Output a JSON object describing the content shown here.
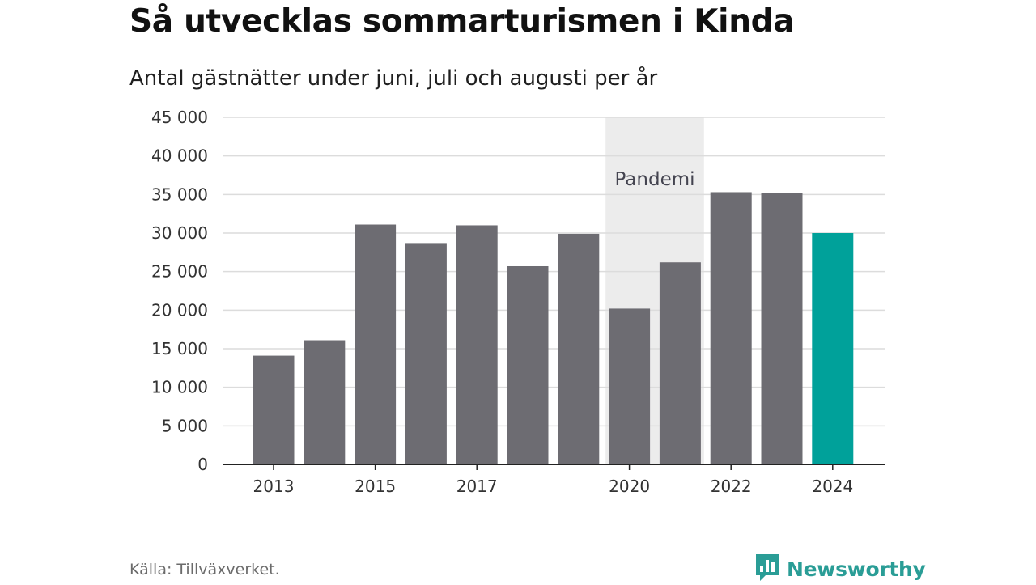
{
  "title": "Så utvecklas sommarturismen i Kinda",
  "subtitle": "Antal gästnätter under juni, juli och augusti per år",
  "source": "Källa: Tillväxverket.",
  "brand": {
    "name": "Newsworthy",
    "icon": "newsworthy-logo-icon",
    "color": "#2a9d96"
  },
  "colors": {
    "bar": "#6d6c72",
    "highlight": "#00a19a",
    "shade": "#ececec",
    "grid": "#dcdcdc",
    "axis": "#222222"
  },
  "chart_data": {
    "type": "bar",
    "categories": [
      "2013",
      "2014",
      "2015",
      "2016",
      "2017",
      "2018",
      "2019",
      "2020",
      "2021",
      "2022",
      "2023",
      "2024"
    ],
    "values": [
      14100,
      16100,
      31100,
      28700,
      31000,
      25700,
      29900,
      20200,
      26200,
      35300,
      35200,
      30000
    ],
    "highlight_index": 11,
    "x_tick_labels": [
      "2013",
      "",
      "2015",
      "",
      "2017",
      "",
      "",
      "2020",
      "",
      "2022",
      "",
      "2024"
    ],
    "ylim": [
      0,
      45000
    ],
    "yticks": [
      0,
      5000,
      10000,
      15000,
      20000,
      25000,
      30000,
      35000,
      40000,
      45000
    ],
    "ytick_labels": [
      "0",
      "5 000",
      "10 000",
      "15 000",
      "20 000",
      "25 000",
      "30 000",
      "35 000",
      "40 000",
      "45 000"
    ],
    "grid": true,
    "legend": "none",
    "annotations": [
      {
        "label": "Pandemi",
        "from_category": "2020",
        "to_category": "2021"
      }
    ]
  }
}
